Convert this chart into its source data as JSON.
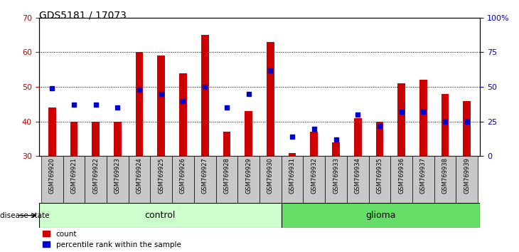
{
  "title": "GDS5181 / 17073",
  "samples": [
    "GSM769920",
    "GSM769921",
    "GSM769922",
    "GSM769923",
    "GSM769924",
    "GSM769925",
    "GSM769926",
    "GSM769927",
    "GSM769928",
    "GSM769929",
    "GSM769930",
    "GSM769931",
    "GSM769932",
    "GSM769933",
    "GSM769934",
    "GSM769935",
    "GSM769936",
    "GSM769937",
    "GSM769938",
    "GSM769939"
  ],
  "bar_values": [
    44,
    40,
    40,
    40,
    60,
    59,
    54,
    65,
    37,
    43,
    63,
    31,
    37,
    34,
    41,
    40,
    51,
    52,
    48,
    46
  ],
  "dot_values_pct": [
    49,
    37,
    37,
    35,
    48,
    45,
    40,
    50,
    35,
    45,
    62,
    14,
    20,
    12,
    30,
    22,
    32,
    32,
    25,
    25
  ],
  "bar_bottom": 30,
  "ylim_left": [
    30,
    70
  ],
  "ylim_right": [
    0,
    100
  ],
  "yticks_left": [
    30,
    40,
    50,
    60,
    70
  ],
  "yticks_right": [
    0,
    25,
    50,
    75,
    100
  ],
  "ytick_right_labels": [
    "0",
    "25",
    "50",
    "75",
    "100%"
  ],
  "control_count": 11,
  "glioma_count": 9,
  "bar_color": "#cc0000",
  "dot_color": "#0000cc",
  "control_color": "#ccffcc",
  "glioma_color": "#66dd66",
  "control_label": "control",
  "glioma_label": "glioma",
  "disease_state_label": "disease state",
  "legend_count_label": "count",
  "legend_pct_label": "percentile rank within the sample",
  "bg_color": "#ffffff",
  "subplot_bg": "#c8c8c8"
}
